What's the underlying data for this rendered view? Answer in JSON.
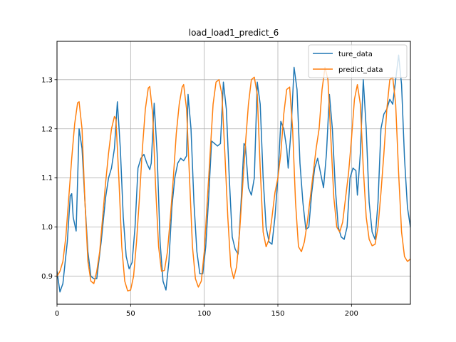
{
  "chart_data": {
    "type": "line",
    "title": "load_load1_predict_6",
    "xlabel": "",
    "ylabel": "",
    "xlim": [
      0,
      240
    ],
    "ylim": [
      0.843,
      1.378
    ],
    "grid": true,
    "legend_position": "top-right",
    "x_ticks": [
      0,
      50,
      100,
      150,
      200
    ],
    "y_ticks": [
      0.9,
      1.0,
      1.1,
      1.2,
      1.3
    ],
    "x_tick_labels": [
      "0",
      "50",
      "100",
      "150",
      "200"
    ],
    "y_tick_labels": [
      "0.9",
      "1.0",
      "1.1",
      "1.2",
      "1.3"
    ],
    "series": [
      {
        "name": "ture_data",
        "color": "#1f77b4",
        "points": [
          [
            0,
            0.91
          ],
          [
            2,
            0.868
          ],
          [
            4,
            0.885
          ],
          [
            7,
            0.97
          ],
          [
            9,
            1.063
          ],
          [
            10,
            1.068
          ],
          [
            11,
            1.02
          ],
          [
            13,
            0.992
          ],
          [
            15,
            1.2
          ],
          [
            17,
            1.16
          ],
          [
            19,
            1.05
          ],
          [
            21,
            0.95
          ],
          [
            23,
            0.9
          ],
          [
            25,
            0.895
          ],
          [
            27,
            0.895
          ],
          [
            30,
            0.97
          ],
          [
            33,
            1.06
          ],
          [
            35,
            1.1
          ],
          [
            37,
            1.12
          ],
          [
            39,
            1.16
          ],
          [
            41,
            1.255
          ],
          [
            43,
            1.16
          ],
          [
            45,
            1.02
          ],
          [
            47,
            0.94
          ],
          [
            49,
            0.915
          ],
          [
            51,
            0.928
          ],
          [
            53,
            1.0
          ],
          [
            55,
            1.12
          ],
          [
            57,
            1.14
          ],
          [
            59,
            1.148
          ],
          [
            61,
            1.13
          ],
          [
            63,
            1.117
          ],
          [
            64,
            1.13
          ],
          [
            66,
            1.252
          ],
          [
            68,
            1.15
          ],
          [
            70,
            0.97
          ],
          [
            72,
            0.89
          ],
          [
            74,
            0.872
          ],
          [
            76,
            0.93
          ],
          [
            78,
            1.04
          ],
          [
            80,
            1.1
          ],
          [
            82,
            1.13
          ],
          [
            84,
            1.14
          ],
          [
            86,
            1.135
          ],
          [
            88,
            1.145
          ],
          [
            89,
            1.27
          ],
          [
            91,
            1.2
          ],
          [
            93,
            1.05
          ],
          [
            95,
            0.95
          ],
          [
            97,
            0.905
          ],
          [
            99,
            0.905
          ],
          [
            101,
            0.96
          ],
          [
            103,
            1.06
          ],
          [
            105,
            1.175
          ],
          [
            107,
            1.17
          ],
          [
            109,
            1.165
          ],
          [
            111,
            1.17
          ],
          [
            113,
            1.295
          ],
          [
            115,
            1.24
          ],
          [
            117,
            1.1
          ],
          [
            119,
            0.98
          ],
          [
            121,
            0.955
          ],
          [
            123,
            0.945
          ],
          [
            125,
            1.05
          ],
          [
            127,
            1.17
          ],
          [
            128,
            1.165
          ],
          [
            130,
            1.08
          ],
          [
            132,
            1.065
          ],
          [
            134,
            1.1
          ],
          [
            136,
            1.295
          ],
          [
            138,
            1.25
          ],
          [
            140,
            1.1
          ],
          [
            142,
            1.0
          ],
          [
            144,
            0.97
          ],
          [
            146,
            0.965
          ],
          [
            148,
            1.02
          ],
          [
            150,
            1.1
          ],
          [
            152,
            1.215
          ],
          [
            154,
            1.2
          ],
          [
            156,
            1.16
          ],
          [
            157,
            1.12
          ],
          [
            159,
            1.2
          ],
          [
            161,
            1.325
          ],
          [
            163,
            1.28
          ],
          [
            165,
            1.13
          ],
          [
            167,
            1.05
          ],
          [
            169,
            0.995
          ],
          [
            171,
            1.0
          ],
          [
            173,
            1.07
          ],
          [
            175,
            1.12
          ],
          [
            177,
            1.14
          ],
          [
            179,
            1.11
          ],
          [
            181,
            1.08
          ],
          [
            183,
            1.15
          ],
          [
            185,
            1.27
          ],
          [
            187,
            1.2
          ],
          [
            189,
            1.08
          ],
          [
            191,
            1.0
          ],
          [
            193,
            0.98
          ],
          [
            195,
            0.975
          ],
          [
            197,
            1.0
          ],
          [
            199,
            1.1
          ],
          [
            201,
            1.12
          ],
          [
            203,
            1.115
          ],
          [
            204,
            1.065
          ],
          [
            206,
            1.15
          ],
          [
            208,
            1.3
          ],
          [
            210,
            1.2
          ],
          [
            212,
            1.05
          ],
          [
            214,
            0.99
          ],
          [
            216,
            0.975
          ],
          [
            218,
            1.05
          ],
          [
            220,
            1.2
          ],
          [
            222,
            1.23
          ],
          [
            224,
            1.24
          ],
          [
            226,
            1.26
          ],
          [
            228,
            1.25
          ],
          [
            230,
            1.3
          ],
          [
            232,
            1.35
          ],
          [
            234,
            1.29
          ],
          [
            236,
            1.14
          ],
          [
            238,
            1.04
          ],
          [
            240,
            1.0
          ]
        ]
      },
      {
        "name": "predict_data",
        "color": "#ff7f0e",
        "points": [
          [
            0,
            0.9
          ],
          [
            2,
            0.91
          ],
          [
            4,
            0.93
          ],
          [
            6,
            0.98
          ],
          [
            8,
            1.06
          ],
          [
            10,
            1.14
          ],
          [
            12,
            1.21
          ],
          [
            14,
            1.253
          ],
          [
            15,
            1.255
          ],
          [
            17,
            1.2
          ],
          [
            19,
            1.05
          ],
          [
            21,
            0.93
          ],
          [
            23,
            0.89
          ],
          [
            25,
            0.885
          ],
          [
            27,
            0.91
          ],
          [
            29,
            0.95
          ],
          [
            31,
            1.02
          ],
          [
            33,
            1.09
          ],
          [
            35,
            1.15
          ],
          [
            37,
            1.2
          ],
          [
            39,
            1.225
          ],
          [
            40,
            1.22
          ],
          [
            42,
            1.1
          ],
          [
            44,
            0.96
          ],
          [
            46,
            0.89
          ],
          [
            48,
            0.87
          ],
          [
            50,
            0.872
          ],
          [
            52,
            0.9
          ],
          [
            54,
            0.97
          ],
          [
            56,
            1.06
          ],
          [
            58,
            1.16
          ],
          [
            60,
            1.24
          ],
          [
            62,
            1.283
          ],
          [
            63,
            1.286
          ],
          [
            65,
            1.23
          ],
          [
            67,
            1.08
          ],
          [
            69,
            0.96
          ],
          [
            71,
            0.91
          ],
          [
            73,
            0.912
          ],
          [
            75,
            0.95
          ],
          [
            77,
            1.02
          ],
          [
            79,
            1.1
          ],
          [
            81,
            1.19
          ],
          [
            83,
            1.25
          ],
          [
            85,
            1.285
          ],
          [
            86,
            1.29
          ],
          [
            88,
            1.24
          ],
          [
            90,
            1.1
          ],
          [
            92,
            0.96
          ],
          [
            94,
            0.895
          ],
          [
            96,
            0.878
          ],
          [
            98,
            0.89
          ],
          [
            100,
            0.95
          ],
          [
            102,
            1.05
          ],
          [
            104,
            1.15
          ],
          [
            106,
            1.25
          ],
          [
            108,
            1.295
          ],
          [
            110,
            1.3
          ],
          [
            112,
            1.27
          ],
          [
            114,
            1.15
          ],
          [
            116,
            1.02
          ],
          [
            118,
            0.92
          ],
          [
            120,
            0.895
          ],
          [
            122,
            0.92
          ],
          [
            124,
            0.99
          ],
          [
            126,
            1.08
          ],
          [
            128,
            1.17
          ],
          [
            130,
            1.25
          ],
          [
            132,
            1.3
          ],
          [
            134,
            1.305
          ],
          [
            136,
            1.27
          ],
          [
            138,
            1.12
          ],
          [
            140,
            0.99
          ],
          [
            142,
            0.96
          ],
          [
            144,
            0.975
          ],
          [
            146,
            1.02
          ],
          [
            148,
            1.07
          ],
          [
            150,
            1.1
          ],
          [
            152,
            1.15
          ],
          [
            154,
            1.23
          ],
          [
            156,
            1.28
          ],
          [
            158,
            1.285
          ],
          [
            160,
            1.2
          ],
          [
            162,
            1.05
          ],
          [
            164,
            0.96
          ],
          [
            166,
            0.95
          ],
          [
            168,
            0.97
          ],
          [
            170,
            1.01
          ],
          [
            172,
            1.06
          ],
          [
            174,
            1.11
          ],
          [
            176,
            1.16
          ],
          [
            178,
            1.2
          ],
          [
            180,
            1.28
          ],
          [
            182,
            1.325
          ],
          [
            184,
            1.3
          ],
          [
            186,
            1.18
          ],
          [
            188,
            1.06
          ],
          [
            190,
            1.0
          ],
          [
            192,
            0.99
          ],
          [
            194,
            1.01
          ],
          [
            196,
            1.06
          ],
          [
            198,
            1.11
          ],
          [
            200,
            1.18
          ],
          [
            202,
            1.26
          ],
          [
            204,
            1.29
          ],
          [
            206,
            1.25
          ],
          [
            208,
            1.12
          ],
          [
            210,
            1.02
          ],
          [
            212,
            0.975
          ],
          [
            214,
            0.962
          ],
          [
            216,
            0.965
          ],
          [
            218,
            1.0
          ],
          [
            220,
            1.07
          ],
          [
            222,
            1.15
          ],
          [
            224,
            1.24
          ],
          [
            226,
            1.3
          ],
          [
            228,
            1.305
          ],
          [
            230,
            1.25
          ],
          [
            232,
            1.11
          ],
          [
            234,
            0.99
          ],
          [
            236,
            0.94
          ],
          [
            238,
            0.93
          ],
          [
            240,
            0.935
          ]
        ]
      }
    ]
  }
}
